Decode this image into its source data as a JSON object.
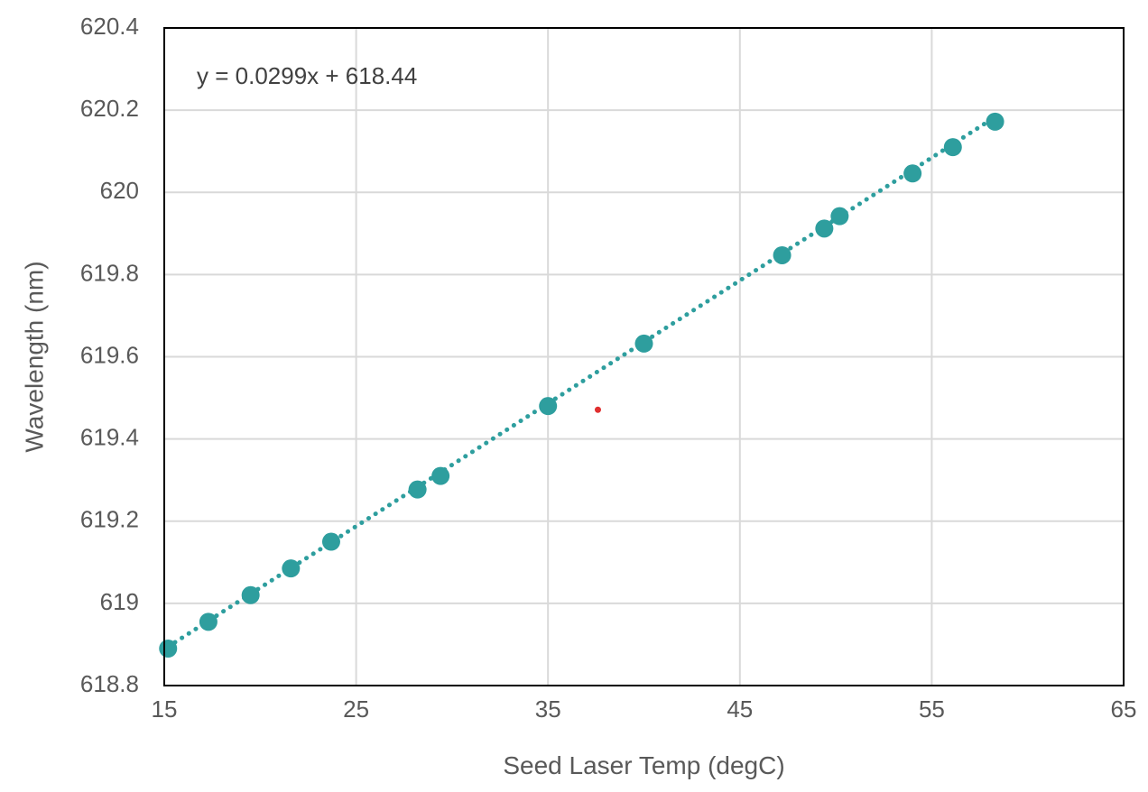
{
  "chart_data": {
    "type": "scatter",
    "title": "",
    "xlabel": "Seed Laser Temp (degC)",
    "ylabel": "Wavelength (nm)",
    "xlim": [
      15,
      65
    ],
    "ylim": [
      618.8,
      620.4
    ],
    "x_ticks": [
      "15",
      "25",
      "35",
      "45",
      "55",
      "65"
    ],
    "y_ticks": [
      "618.8",
      "619",
      "619.2",
      "619.4",
      "619.6",
      "619.8",
      "620",
      "620.2",
      "620.4"
    ],
    "grid": true,
    "legend": "none",
    "series": [
      {
        "color": "#2E9E9E",
        "marker": "circle",
        "x": [
          15.2,
          17.3,
          19.5,
          21.6,
          23.7,
          28.2,
          29.4,
          35.0,
          40.0,
          47.2,
          49.4,
          50.2,
          54.0,
          56.1,
          58.3
        ],
        "y": [
          618.89,
          618.955,
          619.02,
          619.085,
          619.15,
          619.277,
          619.31,
          619.48,
          619.632,
          619.847,
          619.912,
          619.942,
          620.046,
          620.11,
          620.172
        ]
      }
    ],
    "trendline": {
      "type": "linear",
      "style": "dotted",
      "color": "#2E9E9E",
      "slope": 0.0299,
      "intercept": 618.44,
      "x_range": [
        15.2,
        58.3
      ],
      "equation_label": "y = 0.0299x + 618.44"
    },
    "annotations": [
      {
        "type": "point",
        "color": "#E03030",
        "x": 37.6,
        "y": 619.471
      }
    ]
  }
}
